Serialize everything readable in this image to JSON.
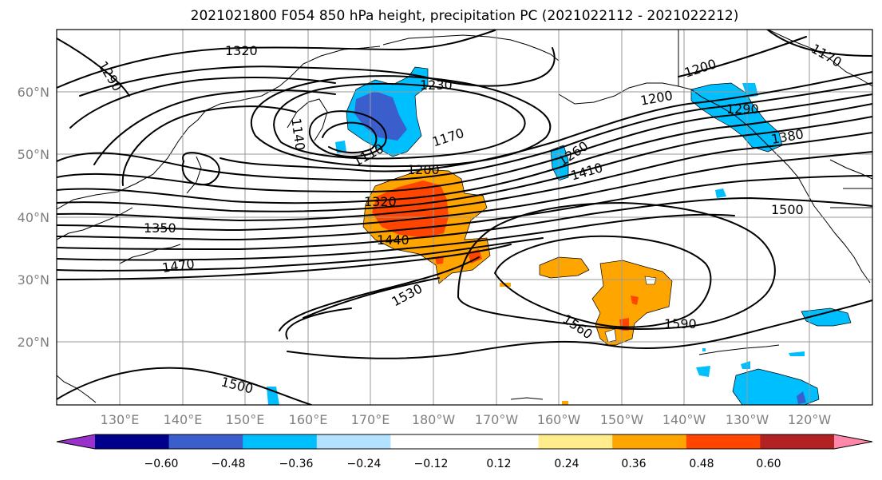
{
  "title": "2021021800 F054 850 hPa height, precipitation PC (2021022112 - 2021022212)",
  "lat_labels": [
    "60°N",
    "50°N",
    "40°N",
    "30°N",
    "20°N"
  ],
  "lon_labels": [
    "130°E",
    "140°E",
    "150°E",
    "160°E",
    "170°E",
    "180°W",
    "170°W",
    "160°W",
    "150°W",
    "140°W",
    "130°W",
    "120°W"
  ],
  "colorbar": {
    "colors": [
      "#9932CC",
      "#00008B",
      "#3A5FCD",
      "#00BFFF",
      "#B2E2FF",
      "#FFFFFF",
      "#FFFFFF",
      "#FFEC8B",
      "#FFA500",
      "#FF4500",
      "#B22222",
      "#FF88AA"
    ],
    "ticks": [
      "−0.60",
      "−0.48",
      "−0.36",
      "−0.24",
      "−0.12",
      "0.12",
      "0.24",
      "0.36",
      "0.48",
      "0.60"
    ]
  },
  "contour_labels": [
    {
      "id": "1290-nw",
      "text": "1290"
    },
    {
      "id": "1320-n",
      "text": "1320"
    },
    {
      "id": "1230",
      "text": "1230"
    },
    {
      "id": "1140",
      "text": "1140"
    },
    {
      "id": "1110",
      "text": "1110"
    },
    {
      "id": "1170",
      "text": "1170"
    },
    {
      "id": "1200-c",
      "text": "1200"
    },
    {
      "id": "1320-c",
      "text": "1320"
    },
    {
      "id": "1350",
      "text": "1350"
    },
    {
      "id": "1440",
      "text": "1440"
    },
    {
      "id": "1470",
      "text": "1470"
    },
    {
      "id": "1530",
      "text": "1530"
    },
    {
      "id": "1260",
      "text": "1260"
    },
    {
      "id": "1410",
      "text": "1410"
    },
    {
      "id": "1200-ne",
      "text": "1200"
    },
    {
      "id": "1200-ne2",
      "text": "1200"
    },
    {
      "id": "1170-ne",
      "text": "1170"
    },
    {
      "id": "1290-ne",
      "text": "1290"
    },
    {
      "id": "1380",
      "text": "1380"
    },
    {
      "id": "1500-e",
      "text": "1500"
    },
    {
      "id": "1590",
      "text": "1590"
    },
    {
      "id": "1560",
      "text": "1560"
    },
    {
      "id": "1500-s",
      "text": "1500"
    }
  ],
  "fields": {
    "precip_pc_levels": [
      -0.6,
      -0.48,
      -0.36,
      -0.24,
      -0.12,
      0.12,
      0.24,
      0.36,
      0.48,
      0.6
    ],
    "lat_range": [
      "10°N",
      "70°N"
    ],
    "lon_range": [
      "120°E",
      "110°W"
    ]
  }
}
